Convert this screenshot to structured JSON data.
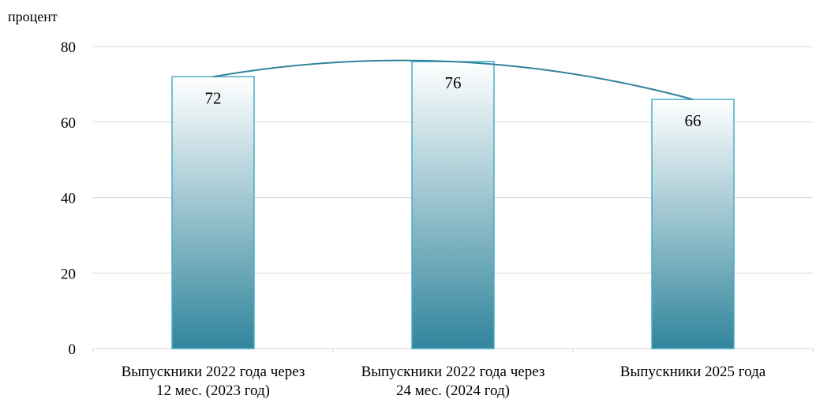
{
  "chart_data": {
    "type": "bar",
    "ylabel": "процент",
    "ylim": [
      0,
      80
    ],
    "yticks": [
      0,
      20,
      40,
      60,
      80
    ],
    "categories": [
      [
        "Выпускники 2022 года через",
        "12 мес. (2023 год)"
      ],
      [
        "Выпускники 2022 года через",
        "24 мес. (2024 год)"
      ],
      [
        "Выпускники 2025 года"
      ]
    ],
    "values": [
      72,
      76,
      66
    ],
    "data_labels": [
      "72",
      "76",
      "66"
    ],
    "trendline": "polynomial",
    "grid": true,
    "colors": {
      "bar_top": "#ffffff",
      "bar_bottom": "#31859c",
      "bar_border": "#4bacc6",
      "trend": "#31849b",
      "grid": "#d9d9d9"
    }
  }
}
